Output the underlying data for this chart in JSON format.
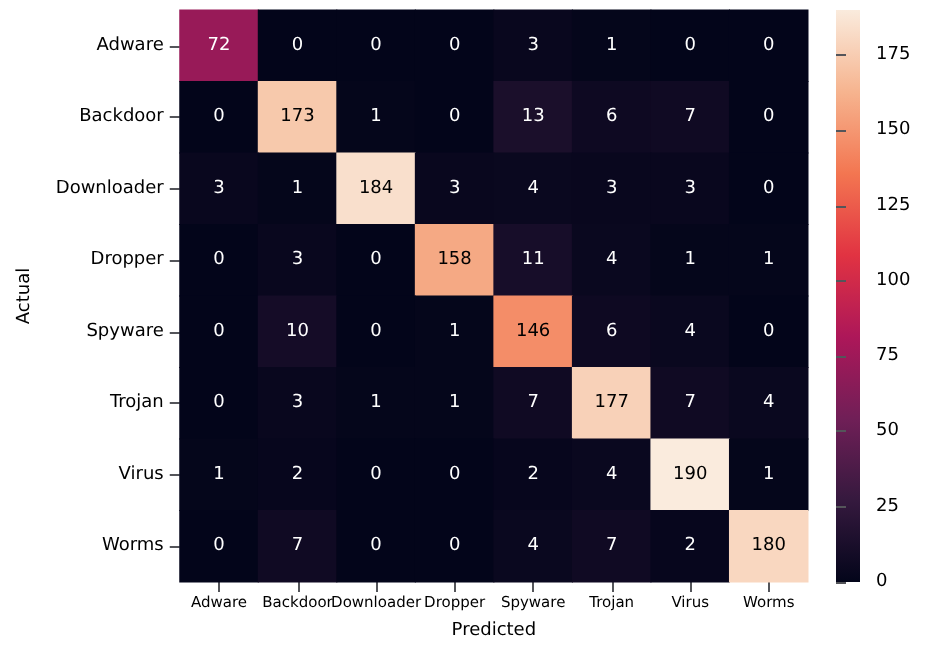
{
  "chart_data": {
    "type": "heatmap",
    "xlabel": "Predicted",
    "ylabel": "Actual",
    "categories": [
      "Adware",
      "Backdoor",
      "Downloader",
      "Dropper",
      "Spyware",
      "Trojan",
      "Virus",
      "Worms"
    ],
    "y_categories": [
      "Adware",
      "Backdoor",
      "Downloader",
      "Dropper",
      "Spyware",
      "Trojan",
      "Virus",
      "Worms"
    ],
    "cells": [
      [
        72,
        0,
        0,
        0,
        3,
        1,
        0,
        0
      ],
      [
        0,
        173,
        1,
        0,
        13,
        6,
        7,
        0
      ],
      [
        3,
        1,
        184,
        3,
        4,
        3,
        3,
        0
      ],
      [
        0,
        3,
        0,
        158,
        11,
        4,
        1,
        1
      ],
      [
        0,
        10,
        0,
        1,
        146,
        6,
        4,
        0
      ],
      [
        0,
        3,
        1,
        1,
        7,
        177,
        7,
        4
      ],
      [
        1,
        2,
        0,
        0,
        2,
        4,
        190,
        1
      ],
      [
        0,
        7,
        0,
        0,
        4,
        7,
        2,
        180
      ]
    ],
    "clim": [
      0,
      190
    ],
    "cticks": [
      0,
      25,
      50,
      75,
      100,
      125,
      150,
      175
    ],
    "data_labels": true
  }
}
